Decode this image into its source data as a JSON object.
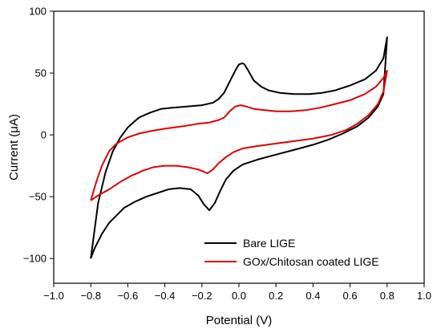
{
  "chart_data": {
    "type": "line",
    "title": "",
    "xlabel": "Potential (V)",
    "ylabel": "Current (μA)",
    "xlim": [
      -1.0,
      1.0
    ],
    "ylim": [
      -120,
      100
    ],
    "x_ticks": [
      -1.0,
      -0.8,
      -0.6,
      -0.4,
      -0.2,
      0.0,
      0.2,
      0.4,
      0.6,
      0.8,
      1.0
    ],
    "x_tick_labels": [
      "−1.0",
      "−0.8",
      "−0.6",
      "−0.4",
      "−0.2",
      "0.0",
      "0.2",
      "0.4",
      "0.6",
      "0.8",
      "1.0"
    ],
    "y_ticks": [
      -100,
      -50,
      0,
      50,
      100
    ],
    "y_tick_labels": [
      "−100",
      "−50",
      "0",
      "50",
      "100"
    ],
    "grid": false,
    "legend_position": "bottom-right",
    "series": [
      {
        "name": "Bare LIGE",
        "color": "#000000",
        "points": [
          [
            -0.8,
            -100
          ],
          [
            -0.78,
            -92
          ],
          [
            -0.74,
            -80
          ],
          [
            -0.7,
            -71
          ],
          [
            -0.66,
            -65
          ],
          [
            -0.62,
            -59
          ],
          [
            -0.56,
            -54
          ],
          [
            -0.5,
            -50
          ],
          [
            -0.44,
            -47
          ],
          [
            -0.38,
            -44
          ],
          [
            -0.32,
            -43
          ],
          [
            -0.26,
            -44
          ],
          [
            -0.22,
            -49
          ],
          [
            -0.19,
            -56
          ],
          [
            -0.16,
            -61
          ],
          [
            -0.13,
            -55
          ],
          [
            -0.1,
            -45
          ],
          [
            -0.07,
            -36
          ],
          [
            -0.03,
            -29
          ],
          [
            0.02,
            -24
          ],
          [
            0.1,
            -20
          ],
          [
            0.2,
            -16
          ],
          [
            0.3,
            -12
          ],
          [
            0.4,
            -8
          ],
          [
            0.48,
            -4
          ],
          [
            0.56,
            1
          ],
          [
            0.64,
            7
          ],
          [
            0.7,
            14
          ],
          [
            0.75,
            23
          ],
          [
            0.78,
            33
          ],
          [
            0.8,
            79
          ],
          [
            0.78,
            62
          ],
          [
            0.74,
            52
          ],
          [
            0.68,
            45
          ],
          [
            0.6,
            40
          ],
          [
            0.52,
            36
          ],
          [
            0.45,
            34
          ],
          [
            0.38,
            33
          ],
          [
            0.3,
            33
          ],
          [
            0.22,
            34
          ],
          [
            0.16,
            36
          ],
          [
            0.12,
            39
          ],
          [
            0.08,
            44
          ],
          [
            0.05,
            52
          ],
          [
            0.03,
            57
          ],
          [
            0.02,
            58
          ],
          [
            0.0,
            57
          ],
          [
            -0.02,
            52
          ],
          [
            -0.05,
            43
          ],
          [
            -0.08,
            34
          ],
          [
            -0.11,
            29
          ],
          [
            -0.14,
            26
          ],
          [
            -0.2,
            24
          ],
          [
            -0.28,
            23
          ],
          [
            -0.36,
            22
          ],
          [
            -0.42,
            21
          ],
          [
            -0.48,
            18
          ],
          [
            -0.54,
            14
          ],
          [
            -0.6,
            6
          ],
          [
            -0.64,
            -2
          ],
          [
            -0.68,
            -13
          ],
          [
            -0.72,
            -30
          ],
          [
            -0.76,
            -55
          ],
          [
            -0.8,
            -100
          ]
        ]
      },
      {
        "name": "GOx/Chitosan coated LIGE",
        "color": "#e00000",
        "points": [
          [
            -0.8,
            -53
          ],
          [
            -0.76,
            -49
          ],
          [
            -0.7,
            -44
          ],
          [
            -0.64,
            -38
          ],
          [
            -0.58,
            -33
          ],
          [
            -0.52,
            -29
          ],
          [
            -0.46,
            -26
          ],
          [
            -0.4,
            -25
          ],
          [
            -0.34,
            -25
          ],
          [
            -0.28,
            -26
          ],
          [
            -0.22,
            -28
          ],
          [
            -0.17,
            -31
          ],
          [
            -0.14,
            -28
          ],
          [
            -0.11,
            -23
          ],
          [
            -0.07,
            -18
          ],
          [
            -0.03,
            -14
          ],
          [
            0.02,
            -11
          ],
          [
            0.1,
            -9
          ],
          [
            0.2,
            -7
          ],
          [
            0.3,
            -5
          ],
          [
            0.4,
            -3
          ],
          [
            0.5,
            0
          ],
          [
            0.58,
            4
          ],
          [
            0.64,
            9
          ],
          [
            0.7,
            16
          ],
          [
            0.75,
            25
          ],
          [
            0.78,
            35
          ],
          [
            0.8,
            52
          ],
          [
            0.78,
            46
          ],
          [
            0.74,
            39
          ],
          [
            0.68,
            33
          ],
          [
            0.6,
            28
          ],
          [
            0.52,
            25
          ],
          [
            0.44,
            22
          ],
          [
            0.36,
            20
          ],
          [
            0.28,
            19
          ],
          [
            0.2,
            19
          ],
          [
            0.14,
            20
          ],
          [
            0.08,
            21
          ],
          [
            0.04,
            23
          ],
          [
            0.01,
            24
          ],
          [
            -0.02,
            23
          ],
          [
            -0.05,
            19
          ],
          [
            -0.08,
            14
          ],
          [
            -0.11,
            12
          ],
          [
            -0.16,
            10
          ],
          [
            -0.22,
            9
          ],
          [
            -0.3,
            7
          ],
          [
            -0.4,
            5
          ],
          [
            -0.48,
            3
          ],
          [
            -0.54,
            1
          ],
          [
            -0.6,
            -2
          ],
          [
            -0.66,
            -7
          ],
          [
            -0.7,
            -13
          ],
          [
            -0.74,
            -25
          ],
          [
            -0.77,
            -38
          ],
          [
            -0.8,
            -53
          ]
        ]
      }
    ]
  }
}
